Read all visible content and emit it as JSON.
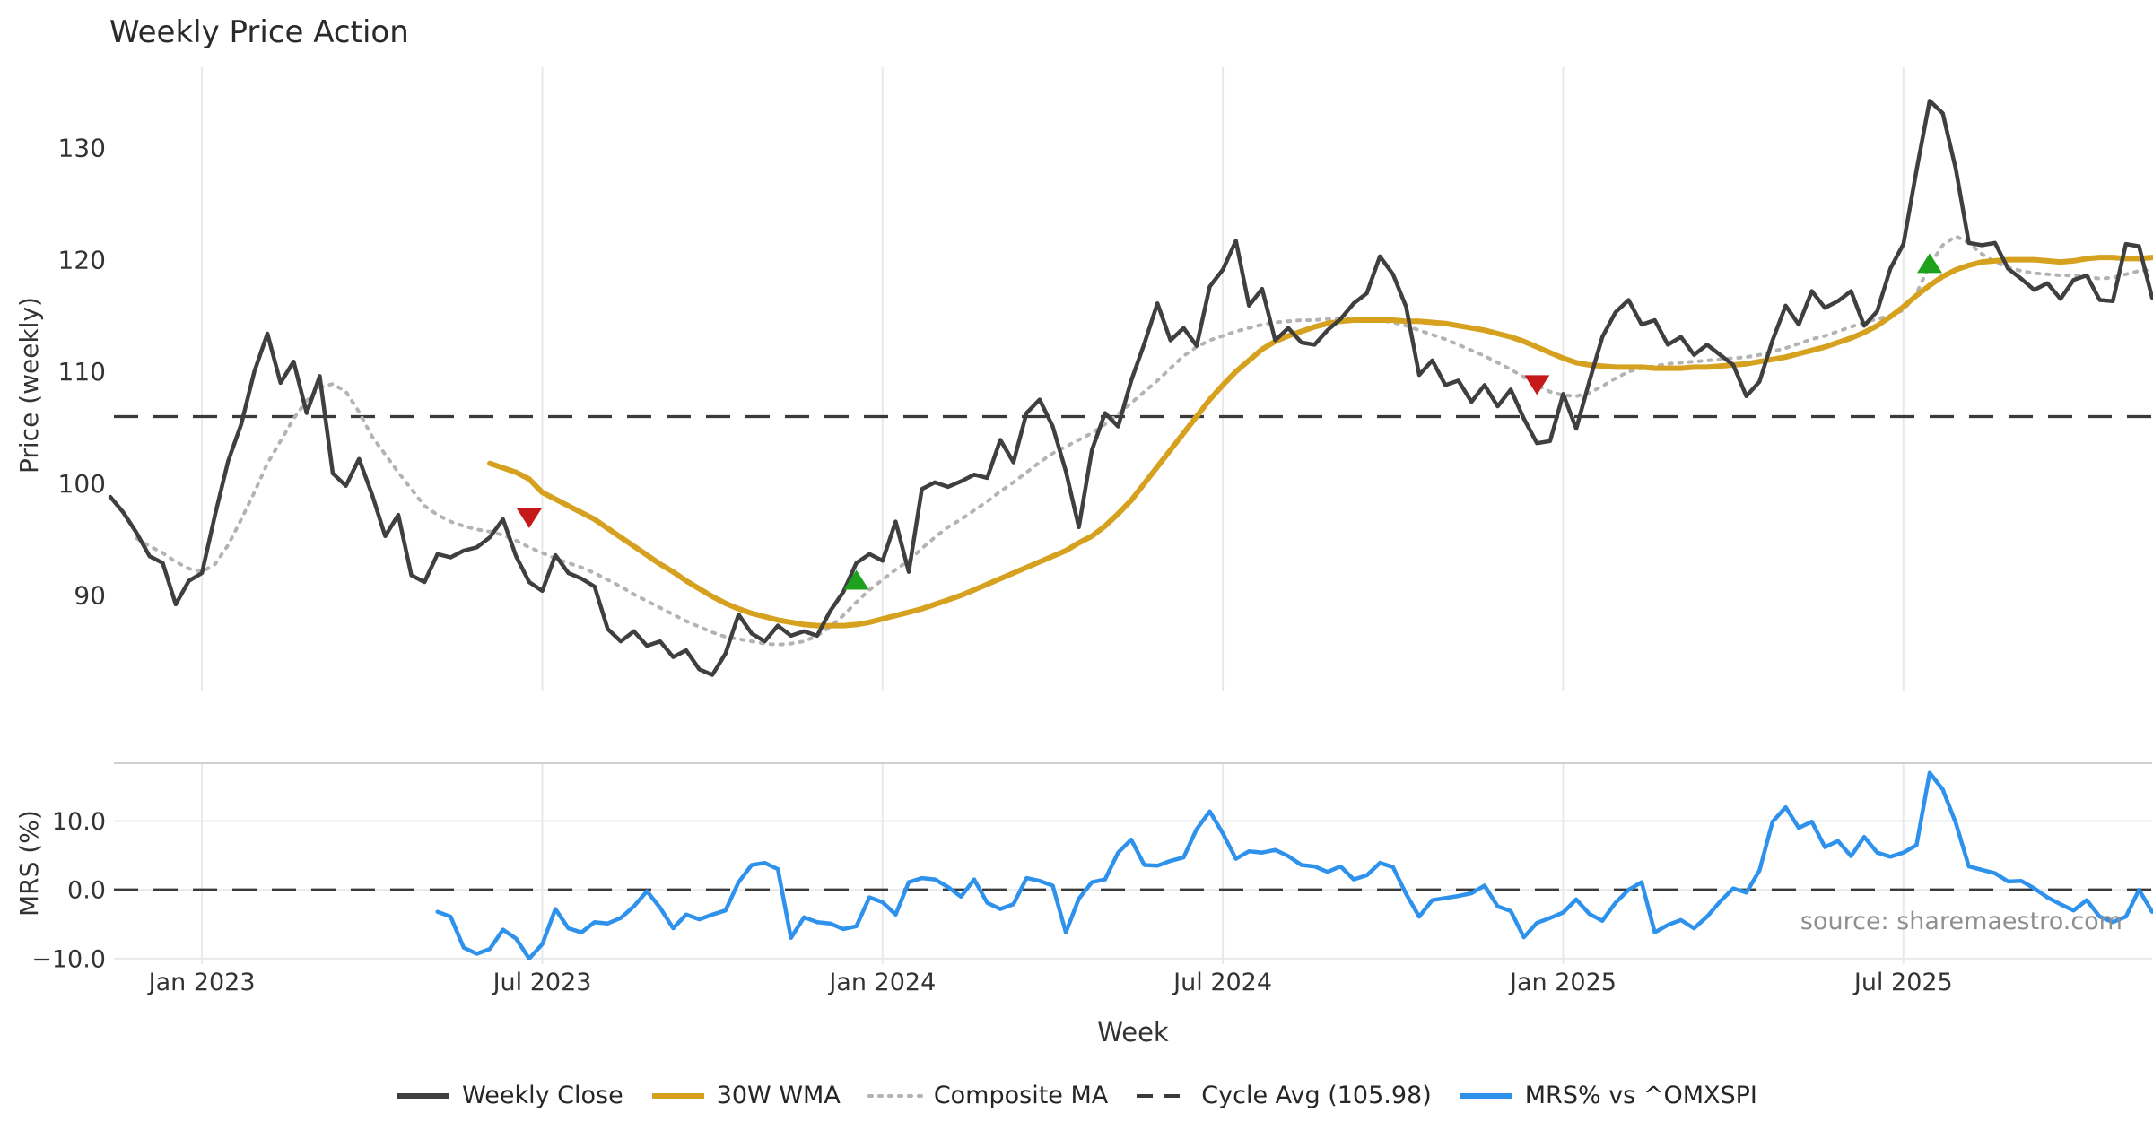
{
  "header": {
    "title": "Weekly Price Action"
  },
  "axes": {
    "price_ylabel": "Price (weekly)",
    "mrs_ylabel": "MRS (%)",
    "xlabel": "Week",
    "price_ticks": [
      {
        "value": 130,
        "label": "130"
      },
      {
        "value": 120,
        "label": "120"
      },
      {
        "value": 110,
        "label": "110"
      },
      {
        "value": 100,
        "label": "100"
      },
      {
        "value": 90,
        "label": "90"
      }
    ],
    "mrs_ticks": [
      {
        "value": 10,
        "label": "10.0"
      },
      {
        "value": 0,
        "label": "0.0"
      },
      {
        "value": -10,
        "label": "−10.0"
      }
    ]
  },
  "footer": {
    "source": "source: sharemaestro.com"
  },
  "legend": [
    {
      "label": "Weekly Close",
      "style": "solid",
      "color": "#3f3f3f"
    },
    {
      "label": "30W WMA",
      "style": "solid",
      "color": "#d5a11e"
    },
    {
      "label": "Composite MA",
      "style": "dotted",
      "color": "#b3b3b3"
    },
    {
      "label": "Cycle Avg (105.98)",
      "style": "dashed",
      "color": "#3a3a3a"
    },
    {
      "label": "MRS% vs ^OMXSPI",
      "style": "solid",
      "color": "#2e92ec"
    }
  ],
  "colors": {
    "close": "#3f3f3f",
    "wma": "#d5a11e",
    "composite": "#b3b3b3",
    "cycle": "#3a3a3a",
    "mrs": "#2e92ec",
    "buy": "#1ea21e",
    "sell": "#c61a1a",
    "grid": "#e9e9e9",
    "spine": "#cfcfcf",
    "tick": "#333333"
  },
  "chart_data": {
    "type": "line",
    "title": "Weekly Price Action",
    "x": {
      "start_date": "2022-11-14",
      "freq": "weekly",
      "n_points": 157,
      "ticks": [
        {
          "week": 7,
          "label": "Jan 2023"
        },
        {
          "week": 33,
          "label": "Jul 2023"
        },
        {
          "week": 59,
          "label": "Jan 2024"
        },
        {
          "week": 85,
          "label": "Jul 2024"
        },
        {
          "week": 111,
          "label": "Jan 2025"
        },
        {
          "week": 137,
          "label": "Jul 2025"
        }
      ]
    },
    "panels": [
      {
        "id": "price",
        "ylabel": "Price (weekly)",
        "ylim": [
          81.5,
          137.2
        ],
        "yticks": [
          90,
          100,
          110,
          120,
          130
        ],
        "grid": "vertical-only",
        "hline": {
          "label": "Cycle Avg",
          "value": 105.98,
          "style": "dashed"
        }
      },
      {
        "id": "mrs",
        "ylabel": "MRS (%)",
        "ylim": [
          -10.8,
          18.4
        ],
        "yticks": [
          -10,
          0,
          10
        ],
        "grid": "both",
        "hline": {
          "value": 0,
          "style": "dashed"
        }
      }
    ],
    "series": {
      "weekly_close": {
        "name": "Weekly Close",
        "panel": "price",
        "start_index": 0,
        "values": [
          98.8,
          97.4,
          95.6,
          93.5,
          92.9,
          89.2,
          91.3,
          92.0,
          97.2,
          102.0,
          105.3,
          110.0,
          113.4,
          109.0,
          110.9,
          106.3,
          109.6,
          100.9,
          99.8,
          102.2,
          99.0,
          95.3,
          97.2,
          91.8,
          91.2,
          93.7,
          93.4,
          94.0,
          94.3,
          95.2,
          96.8,
          93.5,
          91.2,
          90.4,
          93.6,
          92.0,
          91.5,
          90.8,
          87.0,
          85.9,
          86.8,
          85.5,
          85.9,
          84.5,
          85.1,
          83.4,
          82.9,
          84.8,
          88.3,
          86.6,
          85.9,
          87.3,
          86.4,
          86.8,
          86.4,
          88.6,
          90.3,
          92.9,
          93.7,
          93.1,
          96.6,
          92.1,
          99.5,
          100.1,
          99.7,
          100.2,
          100.8,
          100.5,
          103.9,
          101.9,
          106.3,
          107.5,
          105.1,
          101.1,
          96.1,
          103.0,
          106.3,
          105.1,
          109.2,
          112.5,
          116.1,
          112.8,
          113.9,
          112.3,
          117.6,
          119.1,
          121.7,
          115.9,
          117.4,
          112.8,
          113.9,
          112.6,
          112.4,
          113.7,
          114.7,
          116.1,
          117.0,
          120.3,
          118.7,
          115.8,
          109.7,
          111.0,
          108.8,
          109.2,
          107.3,
          108.8,
          106.9,
          108.4,
          105.8,
          103.6,
          103.8,
          108.0,
          104.9,
          109.1,
          113.1,
          115.3,
          116.4,
          114.2,
          114.6,
          112.4,
          113.1,
          111.5,
          112.4,
          111.5,
          110.6,
          107.8,
          109.1,
          112.8,
          115.9,
          114.2,
          117.2,
          115.7,
          116.3,
          117.2,
          114.1,
          115.4,
          119.2,
          121.4,
          128.0,
          134.2,
          133.1,
          128.1,
          121.5,
          121.3,
          121.5,
          119.2,
          118.3,
          117.3,
          117.9,
          116.5,
          118.2,
          118.6,
          116.4,
          116.3,
          121.4,
          121.2,
          116.6
        ]
      },
      "wma_30w": {
        "name": "30W WMA",
        "panel": "price",
        "start_index": 29,
        "values": [
          101.8,
          101.4,
          101.0,
          100.4,
          99.2,
          98.6,
          98.0,
          97.4,
          96.8,
          96.0,
          95.2,
          94.4,
          93.6,
          92.8,
          92.1,
          91.3,
          90.6,
          89.9,
          89.3,
          88.8,
          88.4,
          88.1,
          87.8,
          87.6,
          87.4,
          87.3,
          87.3,
          87.3,
          87.4,
          87.6,
          87.9,
          88.2,
          88.5,
          88.8,
          89.2,
          89.6,
          90.0,
          90.5,
          91.0,
          91.5,
          92.0,
          92.5,
          93.0,
          93.5,
          94.0,
          94.7,
          95.3,
          96.2,
          97.3,
          98.5,
          100.0,
          101.5,
          103.0,
          104.5,
          106.0,
          107.5,
          108.8,
          110.0,
          111.0,
          112.0,
          112.7,
          113.2,
          113.6,
          114.0,
          114.3,
          114.5,
          114.6,
          114.6,
          114.6,
          114.6,
          114.5,
          114.5,
          114.4,
          114.3,
          114.1,
          113.9,
          113.7,
          113.4,
          113.1,
          112.7,
          112.2,
          111.7,
          111.2,
          110.8,
          110.6,
          110.5,
          110.4,
          110.4,
          110.4,
          110.3,
          110.3,
          110.3,
          110.4,
          110.4,
          110.5,
          110.6,
          110.7,
          110.9,
          111.1,
          111.3,
          111.6,
          111.9,
          112.2,
          112.6,
          113.0,
          113.5,
          114.1,
          114.9,
          115.8,
          116.8,
          117.7,
          118.5,
          119.1,
          119.5,
          119.8,
          119.9,
          120.0,
          120.0,
          120.0,
          119.9,
          119.8,
          119.9,
          120.1,
          120.2,
          120.2,
          120.1,
          120.1,
          120.2
        ]
      },
      "composite_ma": {
        "name": "Composite MA",
        "panel": "price",
        "style": "dotted",
        "start_index": 2,
        "values": [
          95.1,
          94.4,
          93.8,
          93.0,
          92.4,
          92.1,
          92.8,
          94.5,
          96.8,
          99.2,
          101.8,
          103.8,
          105.8,
          107.4,
          108.6,
          108.9,
          108.2,
          106.4,
          104.2,
          102.6,
          101.0,
          99.5,
          98.0,
          97.2,
          96.6,
          96.2,
          95.9,
          95.7,
          95.4,
          94.9,
          94.3,
          93.8,
          93.3,
          92.9,
          92.5,
          92.0,
          91.4,
          90.8,
          90.1,
          89.5,
          88.9,
          88.3,
          87.7,
          87.2,
          86.7,
          86.3,
          86.1,
          85.9,
          85.7,
          85.6,
          85.7,
          85.9,
          86.4,
          87.2,
          88.2,
          89.4,
          90.5,
          91.4,
          92.3,
          93.1,
          94.2,
          95.2,
          96.1,
          96.8,
          97.6,
          98.4,
          99.3,
          100.1,
          101.0,
          101.9,
          102.7,
          103.3,
          103.9,
          104.5,
          105.3,
          106.2,
          107.2,
          108.2,
          109.2,
          110.3,
          111.4,
          112.2,
          112.8,
          113.2,
          113.6,
          113.9,
          114.2,
          114.4,
          114.5,
          114.6,
          114.6,
          114.7,
          114.7,
          114.7,
          114.7,
          114.6,
          114.4,
          114.1,
          113.7,
          113.3,
          112.9,
          112.4,
          111.9,
          111.4,
          110.8,
          110.2,
          109.5,
          108.8,
          108.2,
          107.9,
          107.8,
          108.1,
          108.7,
          109.4,
          110.0,
          110.3,
          110.5,
          110.7,
          110.8,
          110.9,
          111.0,
          111.1,
          111.2,
          111.3,
          111.5,
          111.8,
          112.1,
          112.5,
          112.9,
          113.2,
          113.6,
          114.0,
          114.4,
          114.7,
          115.0,
          115.5,
          117.0,
          119.5,
          121.3,
          122.1,
          121.5,
          120.5,
          119.8,
          119.3,
          119.0,
          118.8,
          118.7,
          118.6,
          118.6,
          118.5,
          118.3,
          118.4,
          118.7,
          119.0,
          119.1
        ]
      },
      "mrs_pct": {
        "name": "MRS% vs ^OMXSPI",
        "panel": "mrs",
        "start_index": 25,
        "values": [
          -3.2,
          -3.9,
          -8.4,
          -9.3,
          -8.6,
          -5.8,
          -7.1,
          -10.0,
          -7.9,
          -2.8,
          -5.6,
          -6.2,
          -4.7,
          -4.9,
          -4.1,
          -2.4,
          -0.2,
          -2.6,
          -5.6,
          -3.6,
          -4.3,
          -3.6,
          -3.0,
          1.1,
          3.6,
          3.9,
          3.0,
          -7.0,
          -4.0,
          -4.7,
          -4.9,
          -5.7,
          -5.3,
          -1.1,
          -1.8,
          -3.6,
          1.1,
          1.7,
          1.5,
          0.4,
          -1.0,
          1.5,
          -1.9,
          -2.8,
          -2.1,
          1.7,
          1.3,
          0.6,
          -6.2,
          -1.3,
          1.1,
          1.5,
          5.4,
          7.3,
          3.6,
          3.5,
          4.2,
          4.7,
          8.8,
          11.4,
          8.2,
          4.5,
          5.6,
          5.4,
          5.8,
          4.9,
          3.6,
          3.4,
          2.6,
          3.4,
          1.5,
          2.1,
          3.9,
          3.3,
          -0.6,
          -3.9,
          -1.5,
          -1.2,
          -0.9,
          -0.5,
          0.6,
          -2.4,
          -3.1,
          -6.9,
          -4.8,
          -4.1,
          -3.3,
          -1.4,
          -3.5,
          -4.5,
          -1.9,
          0.0,
          1.1,
          -6.2,
          -5.1,
          -4.4,
          -5.6,
          -3.9,
          -1.7,
          0.2,
          -0.4,
          2.8,
          9.9,
          12.0,
          9.0,
          9.9,
          6.2,
          7.1,
          4.9,
          7.7,
          5.4,
          4.8,
          5.4,
          6.5,
          17.0,
          14.6,
          9.7,
          3.4,
          2.9,
          2.4,
          1.2,
          1.3,
          0.2,
          -1.1,
          -2.1,
          -3.0,
          -1.5,
          -3.9,
          -4.7,
          -3.9,
          0.0,
          -3.2
        ]
      }
    },
    "signals": [
      {
        "type": "sell",
        "week_index": 32,
        "price": 96.9
      },
      {
        "type": "buy",
        "week_index": 57,
        "price": 91.4
      },
      {
        "type": "sell",
        "week_index": 109,
        "price": 108.8
      },
      {
        "type": "buy",
        "week_index": 139,
        "price": 119.7
      }
    ],
    "cycle_avg": 105.98
  }
}
